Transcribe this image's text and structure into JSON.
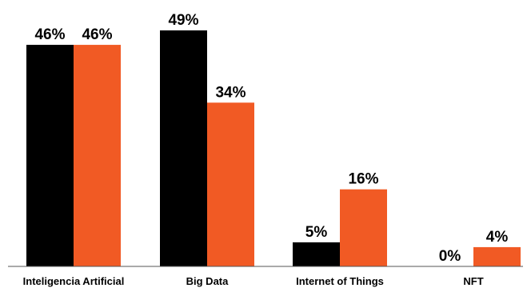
{
  "chart_data": {
    "type": "bar",
    "categories": [
      "Inteligencia Artificial",
      "Big Data",
      "Internet of Things",
      "NFT"
    ],
    "series": [
      {
        "values": [
          46,
          49,
          5,
          0
        ],
        "value_labels": [
          "46%",
          "49%",
          "5%",
          "0%"
        ],
        "color": "#000000"
      },
      {
        "values": [
          46,
          34,
          16,
          4
        ],
        "value_labels": [
          "46%",
          "34%",
          "16%",
          "4%"
        ],
        "color": "#f15a24"
      }
    ],
    "title": "",
    "xlabel": "",
    "ylabel": "",
    "ylim": [
      0,
      49
    ],
    "grid": false,
    "legend": "none",
    "baseline_color": "#555555"
  }
}
